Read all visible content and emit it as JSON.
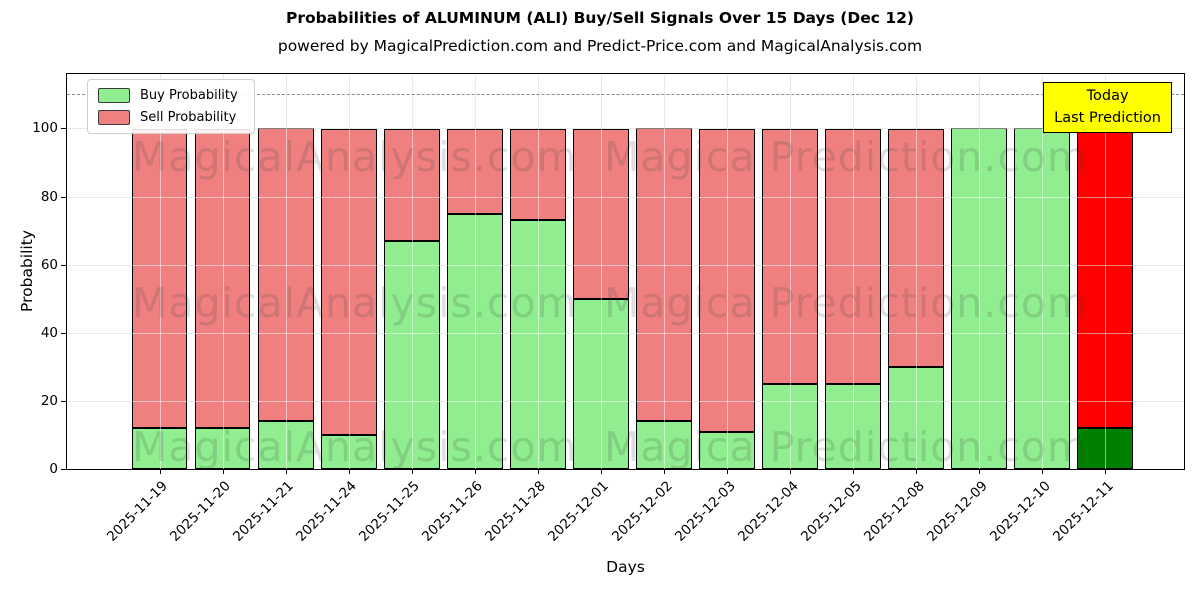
{
  "chart_data": {
    "type": "bar",
    "stacked": true,
    "title": "Probabilities of ALUMINUM (ALI) Buy/Sell Signals Over 15 Days (Dec 12)",
    "subtitle": "powered by MagicalPrediction.com and Predict-Price.com and MagicalAnalysis.com",
    "xlabel": "Days",
    "ylabel": "Probability",
    "ylim": [
      0,
      116
    ],
    "yticks": [
      0,
      20,
      40,
      60,
      80,
      100
    ],
    "grid": true,
    "legend_position": "upper left",
    "categories": [
      "2025-11-19",
      "2025-11-20",
      "2025-11-21",
      "2025-11-24",
      "2025-11-25",
      "2025-11-26",
      "2025-11-28",
      "2025-12-01",
      "2025-12-02",
      "2025-12-03",
      "2025-12-04",
      "2025-12-05",
      "2025-12-08",
      "2025-12-09",
      "2025-12-10",
      "2025-12-11"
    ],
    "series": [
      {
        "name": "Buy Probability",
        "color": "#90EE90",
        "values": [
          12,
          12,
          14,
          10,
          67,
          75,
          73,
          50,
          14,
          11,
          25,
          25,
          30,
          100,
          100,
          12
        ]
      },
      {
        "name": "Sell Probability",
        "color": "#F08080",
        "values": [
          88,
          88,
          86,
          90,
          33,
          25,
          27,
          50,
          86,
          89,
          75,
          75,
          70,
          0,
          0,
          88
        ]
      }
    ],
    "today_bar": {
      "index": 15,
      "buy_color": "#008000",
      "sell_color": "#FF0000"
    },
    "dashed_line_y": 110,
    "bar_edge_color": "#000000"
  },
  "annotation": {
    "line1": "Today",
    "line2": "Last Prediction",
    "bg": "#FFFF00"
  },
  "watermark": {
    "left_text": "MagicalAnalysis.com",
    "right_text": "Magica Prediction.com"
  }
}
